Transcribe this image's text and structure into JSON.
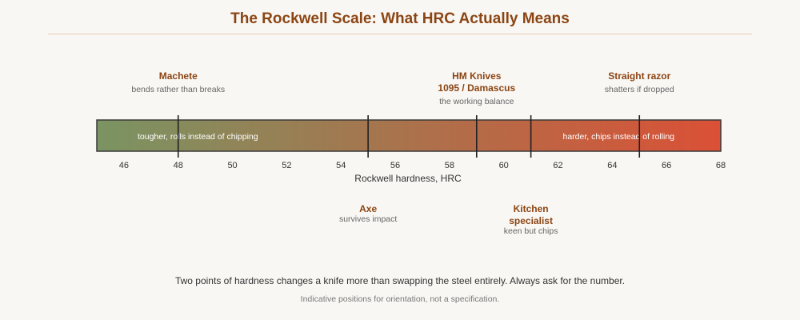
{
  "title": "The Rockwell Scale: What HRC Actually Means",
  "axis": {
    "label": "Rockwell hardness, HRC",
    "min": 45,
    "max": 68,
    "ticks": [
      46,
      48,
      50,
      52,
      54,
      56,
      58,
      60,
      62,
      64,
      66,
      68
    ]
  },
  "bar": {
    "left_text": "tougher, rolls instead of chipping",
    "right_text": "harder, chips instead of rolling",
    "color_start": "#7a9462",
    "color_end": "#db5036"
  },
  "markers_above": [
    {
      "hrc": 48,
      "title": [
        "Machete"
      ],
      "sub": "bends rather than breaks"
    },
    {
      "hrc": 59,
      "title": [
        "HM Knives",
        "1095 / Damascus"
      ],
      "sub": "the working balance"
    },
    {
      "hrc": 65,
      "title": [
        "Straight razor"
      ],
      "sub": "shatters if dropped"
    }
  ],
  "markers_below": [
    {
      "hrc": 55,
      "title": [
        "Axe"
      ],
      "sub": "survives impact"
    },
    {
      "hrc": 61,
      "title": [
        "Kitchen",
        "specialist"
      ],
      "sub": "keen but chips"
    }
  ],
  "footer": "Two points of hardness changes a knife more than swapping the steel entirely. Always ask for the number.",
  "note": "Indicative positions for orientation, not a specification."
}
